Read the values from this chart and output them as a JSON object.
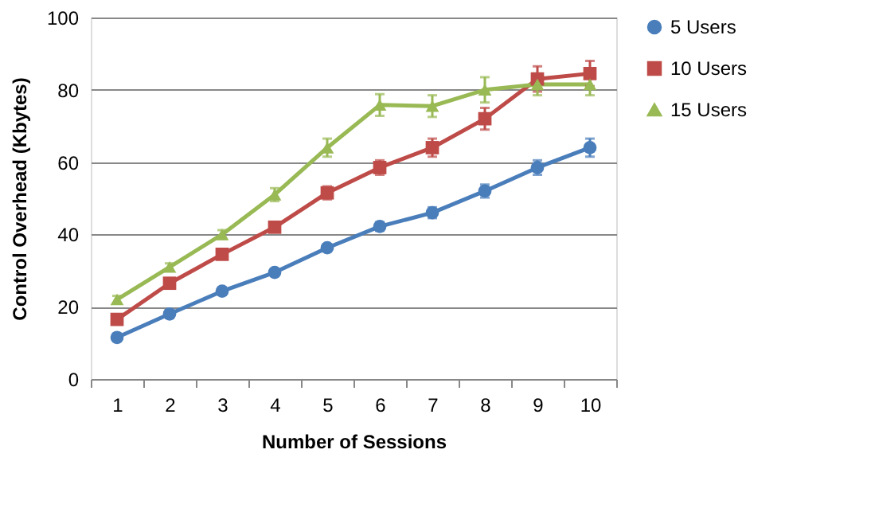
{
  "chart_data": {
    "type": "line",
    "xlabel": "Number of Sessions",
    "ylabel": "Control Overhead (Kbytes)",
    "categories": [
      "1",
      "2",
      "3",
      "4",
      "5",
      "6",
      "7",
      "8",
      "9",
      "10"
    ],
    "series": [
      {
        "name": "5 Users",
        "color": "#4a7ebb",
        "marker": "circle",
        "values": [
          11.5,
          18,
          24.3,
          29.5,
          36.3,
          42.2,
          46,
          52,
          58.5,
          64
        ],
        "errors": [
          1,
          1,
          1,
          1,
          1,
          1.2,
          1.5,
          1.8,
          2,
          2.5
        ]
      },
      {
        "name": "10 Users",
        "color": "#be4b48",
        "marker": "square",
        "values": [
          16.5,
          26.5,
          34.5,
          42,
          51.5,
          58.5,
          64,
          72,
          83,
          84.5
        ],
        "errors": [
          1,
          1,
          1,
          1,
          1.8,
          2,
          2.5,
          3,
          3.5,
          3.5
        ]
      },
      {
        "name": "15 Users",
        "color": "#98b954",
        "marker": "triangle",
        "values": [
          22,
          31,
          40,
          51,
          64,
          75.8,
          75.5,
          80,
          81.5,
          81.5
        ],
        "errors": [
          1,
          1,
          1.2,
          1.8,
          2.5,
          3,
          3,
          3.5,
          3,
          3
        ]
      }
    ],
    "ylim": [
      0,
      100
    ],
    "yticks": [
      0,
      20,
      40,
      60,
      80,
      100
    ],
    "grid": "y",
    "legend": "right"
  }
}
